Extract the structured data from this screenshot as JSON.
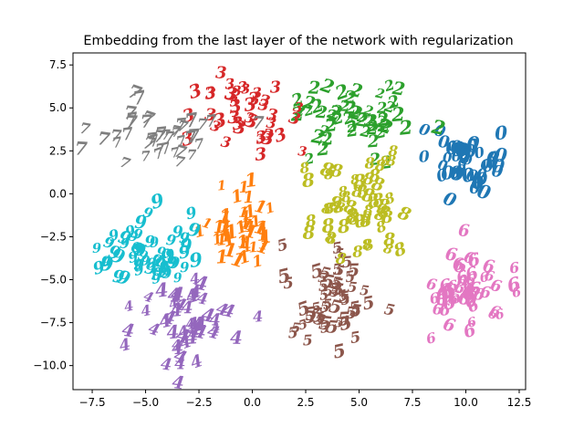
{
  "chart_data": {
    "type": "scatter",
    "title": "Embedding from the last layer of the network with regularization",
    "xlabel": "",
    "ylabel": "",
    "xlim": [
      -8.4,
      12.8
    ],
    "ylim": [
      -11.4,
      8.2
    ],
    "xticks": [
      -7.5,
      -5.0,
      -2.5,
      0.0,
      2.5,
      5.0,
      7.5,
      10.0,
      12.5
    ],
    "xtick_labels": [
      "−7.5",
      "−5.0",
      "−2.5",
      "0.0",
      "2.5",
      "5.0",
      "7.5",
      "10.0",
      "12.5"
    ],
    "yticks": [
      7.5,
      5.0,
      2.5,
      0.0,
      -2.5,
      -5.0,
      -7.5,
      -10.0
    ],
    "ytick_labels": [
      "7.5",
      "5.0",
      "2.5",
      "0.0",
      "−2.5",
      "−5.0",
      "−7.5",
      "−10.0"
    ],
    "grid": false,
    "legend": "none",
    "marker": "digit glyph",
    "series": [
      {
        "label": "0",
        "color": "#1f77b4",
        "center": [
          10.0,
          1.5
        ],
        "spread": [
          1.5,
          1.8
        ],
        "count": 48
      },
      {
        "label": "1",
        "color": "#ff7f0e",
        "center": [
          -0.4,
          -2.3
        ],
        "spread": [
          1.5,
          2.5
        ],
        "count": 45
      },
      {
        "label": "2",
        "color": "#2ca02c",
        "center": [
          4.5,
          4.6
        ],
        "spread": [
          2.8,
          2.0
        ],
        "count": 55
      },
      {
        "label": "3",
        "color": "#d62728",
        "center": [
          -0.2,
          4.2
        ],
        "spread": [
          2.2,
          2.1
        ],
        "count": 40
      },
      {
        "label": "4",
        "color": "#9467bd",
        "center": [
          -2.8,
          -7.9
        ],
        "spread": [
          2.2,
          2.6
        ],
        "count": 50
      },
      {
        "label": "5",
        "color": "#8c564b",
        "center": [
          3.5,
          -6.2
        ],
        "spread": [
          2.0,
          2.8
        ],
        "count": 55
      },
      {
        "label": "6",
        "color": "#e377c2",
        "center": [
          10.4,
          -5.7
        ],
        "spread": [
          2.0,
          2.0
        ],
        "count": 50
      },
      {
        "label": "7",
        "color": "#7f7f7f",
        "center": [
          -4.5,
          2.9
        ],
        "spread": [
          3.0,
          1.6
        ],
        "count": 42
      },
      {
        "label": "8",
        "color": "#bcbd22",
        "center": [
          4.9,
          -1.4
        ],
        "spread": [
          2.2,
          2.6
        ],
        "count": 55
      },
      {
        "label": "9",
        "color": "#17becf",
        "center": [
          -4.8,
          -3.6
        ],
        "spread": [
          2.3,
          1.8
        ],
        "count": 55
      }
    ]
  }
}
